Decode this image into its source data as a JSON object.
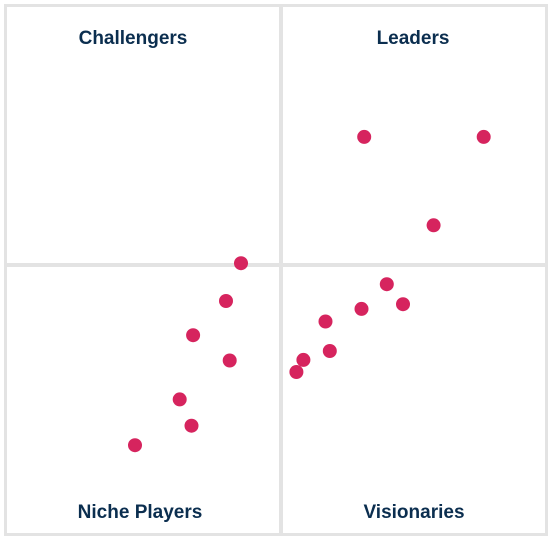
{
  "chart_data": {
    "type": "scatter",
    "quadrants": {
      "top_left": "Challengers",
      "top_right": "Leaders",
      "bottom_left": "Niche Players",
      "bottom_right": "Visionaries"
    },
    "xlim": [
      0,
      100
    ],
    "ylim": [
      0,
      100
    ],
    "grid": false,
    "point_color": "#d6245e",
    "border_color": "#e3e3e3",
    "label_color": "#0b2e4f",
    "points": [
      {
        "x": 66.4,
        "y": 75.3
      },
      {
        "x": 88.6,
        "y": 75.3
      },
      {
        "x": 79.3,
        "y": 58.5
      },
      {
        "x": 43.5,
        "y": 51.3
      },
      {
        "x": 40.7,
        "y": 44.1
      },
      {
        "x": 70.6,
        "y": 47.3
      },
      {
        "x": 73.6,
        "y": 43.5
      },
      {
        "x": 65.9,
        "y": 42.6
      },
      {
        "x": 59.2,
        "y": 40.2
      },
      {
        "x": 34.6,
        "y": 37.6
      },
      {
        "x": 60.0,
        "y": 34.6
      },
      {
        "x": 55.1,
        "y": 32.9
      },
      {
        "x": 53.8,
        "y": 30.6
      },
      {
        "x": 41.4,
        "y": 32.8
      },
      {
        "x": 32.1,
        "y": 25.4
      },
      {
        "x": 34.3,
        "y": 20.4
      },
      {
        "x": 23.8,
        "y": 16.7
      }
    ]
  }
}
